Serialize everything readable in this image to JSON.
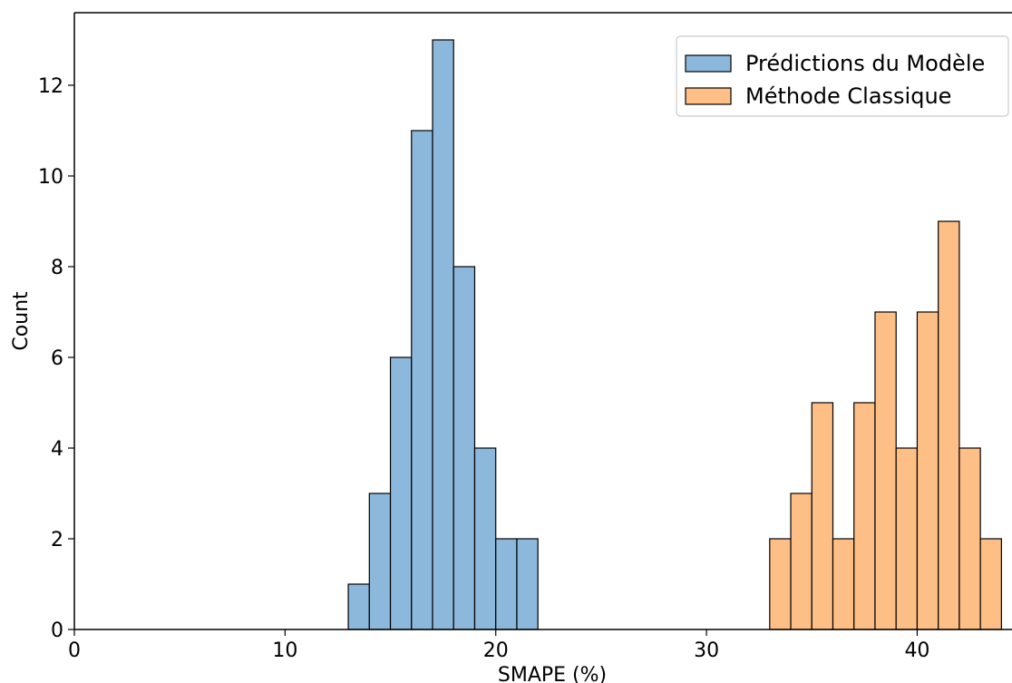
{
  "chart_data": {
    "type": "histogram",
    "title": "",
    "xlabel": "SMAPE (%)",
    "ylabel": "Count",
    "xlim": [
      0,
      44.5
    ],
    "ylim": [
      0,
      13.6
    ],
    "x_ticks": [
      0,
      10,
      20,
      30,
      40
    ],
    "y_ticks": [
      0,
      2,
      4,
      6,
      8,
      10,
      12
    ],
    "bin_width": 1,
    "grid": false,
    "legend_position": "top-right",
    "series": [
      {
        "name": "Prédictions du Modèle",
        "color": "#8cb8dc",
        "bins": [
          {
            "x": 13,
            "count": 1
          },
          {
            "x": 14,
            "count": 3
          },
          {
            "x": 15,
            "count": 6
          },
          {
            "x": 16,
            "count": 11
          },
          {
            "x": 17,
            "count": 13
          },
          {
            "x": 18,
            "count": 8
          },
          {
            "x": 19,
            "count": 4
          },
          {
            "x": 20,
            "count": 2
          },
          {
            "x": 21,
            "count": 2
          }
        ]
      },
      {
        "name": "Méthode Classique",
        "color": "#fdbf86",
        "bins": [
          {
            "x": 33,
            "count": 2
          },
          {
            "x": 34,
            "count": 3
          },
          {
            "x": 35,
            "count": 5
          },
          {
            "x": 36,
            "count": 2
          },
          {
            "x": 37,
            "count": 5
          },
          {
            "x": 38,
            "count": 7
          },
          {
            "x": 39,
            "count": 4
          },
          {
            "x": 40,
            "count": 7
          },
          {
            "x": 41,
            "count": 9
          },
          {
            "x": 42,
            "count": 4
          },
          {
            "x": 43,
            "count": 2
          }
        ]
      }
    ]
  }
}
